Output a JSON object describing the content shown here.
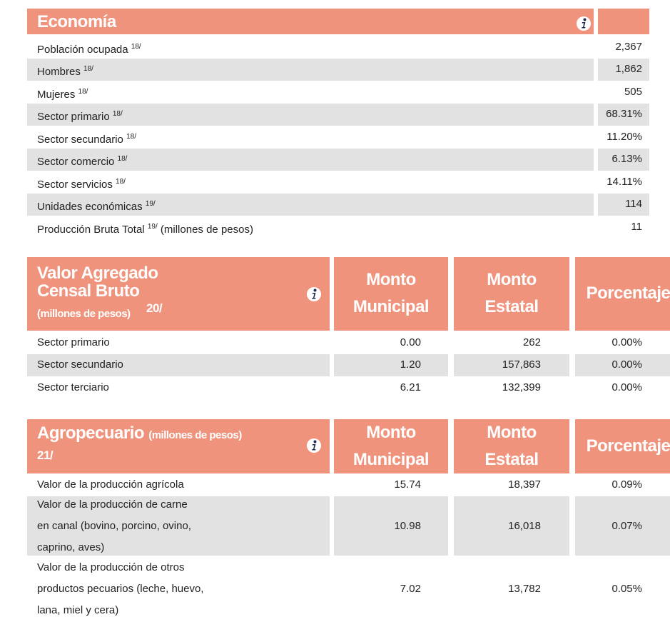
{
  "economia": {
    "title": "Economía",
    "rows": [
      {
        "label": "Población ocupada",
        "note": "18/",
        "value": "2,367"
      },
      {
        "label": "Hombres",
        "note": "18/",
        "value": "1,862"
      },
      {
        "label": "Mujeres",
        "note": "18/",
        "value": "505"
      },
      {
        "label": "Sector primario",
        "note": "18/",
        "value": "68.31%"
      },
      {
        "label": "Sector secundario",
        "note": "18/",
        "value": "11.20%"
      },
      {
        "label": "Sector comercio",
        "note": "18/",
        "value": "6.13%"
      },
      {
        "label": "Sector servicios",
        "note": "18/",
        "value": "14.11%"
      },
      {
        "label": "Unidades económicas",
        "note": "19/",
        "value": "114"
      },
      {
        "label": "Producción Bruta Total",
        "note": "19/",
        "suffix": "(millones de pesos)",
        "value": "11"
      }
    ]
  },
  "valor_agregado": {
    "title": [
      "Valor Agregado",
      "Censal Bruto"
    ],
    "subtitle": "(millones de pesos)",
    "note": "20/",
    "columns": [
      [
        "Monto",
        "Municipal"
      ],
      [
        "Monto",
        "Estatal"
      ],
      [
        "Porcentaje"
      ]
    ],
    "rows": [
      {
        "label": [
          "Sector primario"
        ],
        "values": [
          "0.00",
          "262",
          "0.00%"
        ]
      },
      {
        "label": [
          "Sector secundario"
        ],
        "values": [
          "1.20",
          "157,863",
          "0.00%"
        ]
      },
      {
        "label": [
          "Sector terciario"
        ],
        "values": [
          "6.21",
          "132,399",
          "0.00%"
        ]
      }
    ]
  },
  "agropecuario": {
    "title": "Agropecuario",
    "subtitle": "(millones de pesos)",
    "note": "21/",
    "columns": [
      [
        "Monto",
        "Municipal"
      ],
      [
        "Monto",
        "Estatal"
      ],
      [
        "Porcentaje"
      ]
    ],
    "rows": [
      {
        "label": [
          "Valor de la producción agrícola"
        ],
        "values": [
          "15.74",
          "18,397",
          "0.09%"
        ]
      },
      {
        "label": [
          "Valor de la producción de carne",
          "en canal (bovino, porcino, ovino,",
          "caprino, aves)"
        ],
        "values": [
          "10.98",
          "16,018",
          "0.07%"
        ]
      },
      {
        "label": [
          "Valor de la producción de otros",
          "productos pecuarios (leche, huevo,",
          "lana, miel y cera)"
        ],
        "values": [
          "7.02",
          "13,782",
          "0.05%"
        ]
      }
    ]
  }
}
